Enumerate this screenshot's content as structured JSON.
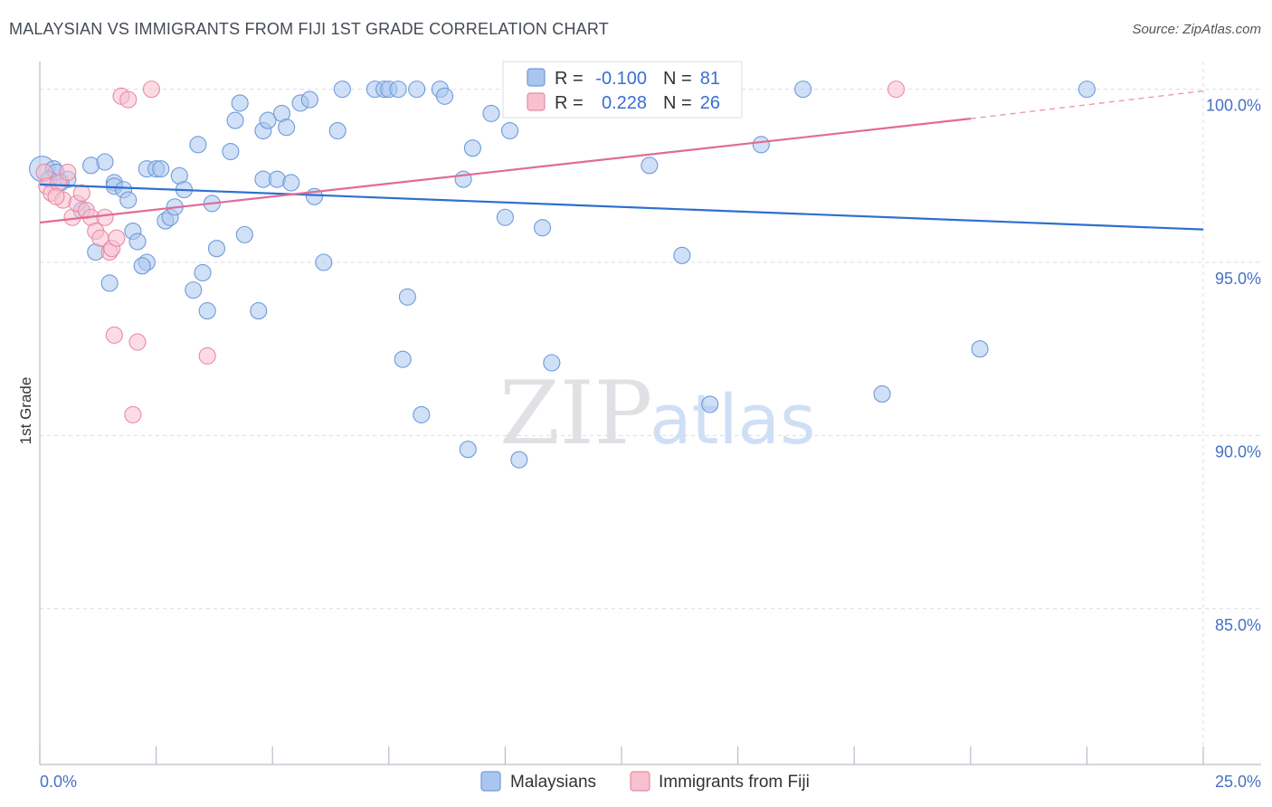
{
  "title": "MALAYSIAN VS IMMIGRANTS FROM FIJI 1ST GRADE CORRELATION CHART",
  "source": "Source: ZipAtlas.com",
  "watermark": {
    "zip": "ZIP",
    "atlas": "atlas"
  },
  "colors": {
    "blue_fill": "#a9c6ee",
    "blue_stroke": "#6f9ad9",
    "blue_line": "#2f6fcf",
    "pink_fill": "#f7c0cf",
    "pink_stroke": "#e88aa6",
    "pink_line": "#e26b93",
    "grid": "#d9dde3",
    "axis_text": "#4472c4"
  },
  "legend": {
    "r_label": "R =",
    "n_label": "N =",
    "rows": [
      {
        "r": "-0.100",
        "n": "81"
      },
      {
        "r": "0.228",
        "n": "26"
      }
    ]
  },
  "chart_data": {
    "type": "scatter",
    "title": "MALAYSIAN VS IMMIGRANTS FROM FIJI 1ST GRADE CORRELATION CHART",
    "xlabel": "",
    "ylabel": "1st Grade",
    "xlim": [
      0,
      25
    ],
    "ylim": [
      80.5,
      100.8
    ],
    "x_tick_labels": {
      "min": "0.0%",
      "max": "25.0%"
    },
    "y_ticks": [
      {
        "value": 100,
        "label": "100.0%"
      },
      {
        "value": 95,
        "label": "95.0%"
      },
      {
        "value": 90,
        "label": "90.0%"
      },
      {
        "value": 85,
        "label": "85.0%"
      }
    ],
    "series": [
      {
        "name": "Malaysians",
        "color": "blue",
        "r": -0.1,
        "n": 81,
        "trend": {
          "x0": 0,
          "y0": 97.25,
          "x1": 25,
          "y1": 95.95
        },
        "points": [
          [
            0.05,
            97.7
          ],
          [
            0.3,
            97.7
          ],
          [
            0.35,
            97.6
          ],
          [
            0.6,
            97.4
          ],
          [
            0.2,
            97.4
          ],
          [
            1.1,
            97.8
          ],
          [
            1.4,
            97.9
          ],
          [
            1.6,
            97.3
          ],
          [
            1.6,
            97.2
          ],
          [
            1.8,
            97.1
          ],
          [
            1.9,
            96.8
          ],
          [
            2.0,
            95.9
          ],
          [
            2.1,
            95.6
          ],
          [
            2.3,
            95.0
          ],
          [
            2.3,
            97.7
          ],
          [
            2.5,
            97.7
          ],
          [
            2.6,
            97.7
          ],
          [
            2.7,
            96.2
          ],
          [
            2.8,
            96.3
          ],
          [
            2.9,
            96.6
          ],
          [
            3.0,
            97.5
          ],
          [
            3.1,
            97.1
          ],
          [
            3.3,
            94.2
          ],
          [
            3.4,
            98.4
          ],
          [
            3.5,
            94.7
          ],
          [
            3.6,
            93.6
          ],
          [
            3.7,
            96.7
          ],
          [
            3.8,
            95.4
          ],
          [
            4.1,
            98.2
          ],
          [
            4.2,
            99.1
          ],
          [
            4.3,
            99.6
          ],
          [
            4.4,
            95.8
          ],
          [
            4.7,
            93.6
          ],
          [
            4.8,
            97.4
          ],
          [
            4.8,
            98.8
          ],
          [
            4.9,
            99.1
          ],
          [
            5.1,
            97.4
          ],
          [
            5.2,
            99.3
          ],
          [
            5.3,
            98.9
          ],
          [
            5.4,
            97.3
          ],
          [
            5.6,
            99.6
          ],
          [
            5.8,
            99.7
          ],
          [
            5.9,
            96.9
          ],
          [
            6.1,
            95.0
          ],
          [
            6.4,
            98.8
          ],
          [
            6.5,
            100.0
          ],
          [
            7.2,
            100.0
          ],
          [
            7.4,
            100.0
          ],
          [
            7.5,
            100.0
          ],
          [
            7.7,
            100.0
          ],
          [
            7.8,
            92.2
          ],
          [
            7.9,
            94.0
          ],
          [
            8.1,
            100.0
          ],
          [
            8.2,
            90.6
          ],
          [
            8.6,
            100.0
          ],
          [
            8.7,
            99.8
          ],
          [
            9.1,
            97.4
          ],
          [
            9.2,
            89.6
          ],
          [
            9.3,
            98.3
          ],
          [
            9.7,
            99.3
          ],
          [
            10.0,
            96.3
          ],
          [
            10.1,
            98.8
          ],
          [
            10.3,
            89.3
          ],
          [
            10.8,
            96.0
          ],
          [
            11.0,
            92.1
          ],
          [
            11.5,
            100.0
          ],
          [
            11.7,
            99.6
          ],
          [
            13.1,
            97.8
          ],
          [
            13.9,
            100.0
          ],
          [
            13.8,
            95.2
          ],
          [
            14.4,
            90.9
          ],
          [
            15.5,
            98.4
          ],
          [
            16.4,
            100.0
          ],
          [
            18.1,
            91.2
          ],
          [
            20.2,
            92.5
          ],
          [
            22.5,
            100.0
          ],
          [
            0.45,
            97.3
          ],
          [
            0.9,
            96.5
          ],
          [
            1.2,
            95.3
          ],
          [
            1.5,
            94.4
          ],
          [
            2.2,
            94.9
          ]
        ]
      },
      {
        "name": "Immigrants from Fiji",
        "color": "pink",
        "r": 0.228,
        "n": 26,
        "trend": {
          "x0": 0,
          "y0": 96.15,
          "x1": 20,
          "y1": 99.15,
          "dash_to_x": 25,
          "dash_to_y": 99.95
        },
        "points": [
          [
            0.1,
            97.6
          ],
          [
            0.15,
            97.2
          ],
          [
            0.25,
            97.0
          ],
          [
            0.4,
            97.3
          ],
          [
            0.5,
            96.8
          ],
          [
            0.6,
            97.6
          ],
          [
            0.7,
            96.3
          ],
          [
            0.8,
            96.7
          ],
          [
            0.9,
            97.0
          ],
          [
            1.0,
            96.5
          ],
          [
            1.1,
            96.3
          ],
          [
            1.2,
            95.9
          ],
          [
            1.3,
            95.7
          ],
          [
            1.4,
            96.3
          ],
          [
            1.5,
            95.3
          ],
          [
            1.55,
            95.4
          ],
          [
            1.6,
            92.9
          ],
          [
            1.65,
            95.7
          ],
          [
            1.75,
            99.8
          ],
          [
            1.9,
            99.7
          ],
          [
            2.0,
            90.6
          ],
          [
            2.1,
            92.7
          ],
          [
            2.4,
            100.0
          ],
          [
            3.6,
            92.3
          ],
          [
            18.4,
            100.0
          ],
          [
            0.35,
            96.9
          ]
        ]
      }
    ]
  },
  "bottom_legend": [
    {
      "label": "Malaysians",
      "color": "blue"
    },
    {
      "label": "Immigrants from Fiji",
      "color": "pink"
    }
  ]
}
